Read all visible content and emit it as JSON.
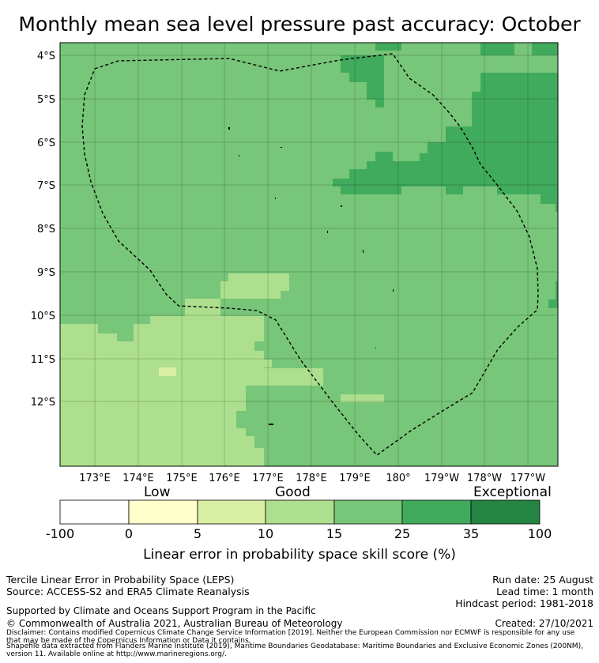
{
  "title": "Monthly mean sea level pressure past accuracy: October",
  "map": {
    "lon_labels": [
      "173°E",
      "174°E",
      "175°E",
      "176°E",
      "177°E",
      "178°E",
      "179°E",
      "180°",
      "179°W",
      "178°W",
      "177°W"
    ],
    "lat_labels": [
      "4°S",
      "5°S",
      "6°S",
      "7°S",
      "8°S",
      "9°S",
      "10°S",
      "11°S",
      "12°S"
    ],
    "colors": {
      "cat_10_15": "#addf8e",
      "cat_5_10": "#d9efa3",
      "cat_15_25": "#78c679",
      "cat_25_35": "#41ab5d",
      "boundary": "#000000"
    }
  },
  "colorbar": {
    "categories": [
      "Low",
      "Good",
      "Exceptional"
    ],
    "ticks": [
      "-100",
      "0",
      "5",
      "10",
      "15",
      "25",
      "35",
      "100"
    ],
    "colors": [
      "#ffffff",
      "#ffffcc",
      "#d9efa3",
      "#addf8e",
      "#78c679",
      "#41ab5d",
      "#238443"
    ],
    "label": "Linear error in probability space skill score (%)"
  },
  "footer": {
    "left1": "Tercile Linear Error in Probability Space (LEPS)",
    "left2": "Source: ACCESS-S2 and ERA5 Climate Reanalysis",
    "support": "Supported by Climate and Oceans Support Program in the Pacific",
    "copyright": "© Commonwealth of Australia 2021, Australian Bureau of Meteorology",
    "run_date": "Run date: 25 August",
    "lead_time": "Lead time: 1 month",
    "hindcast": "Hindcast period: 1981-2018",
    "created": "Created: 27/10/2021",
    "disclaimer1": "Disclaimer: Contains modified Copernicus Climate Change Service Information [2019]. Neither the European Commission nor ECMWF is responsible for any use",
    "disclaimer2": "that may be made of the Copernicus Information or Data it contains.",
    "shapefile1": "Shapefile data extracted from Flanders Marine Institute (2019), Maritime Boundaries Geodatabase: Maritime Boundaries and Exclusive Economic Zones (200NM),",
    "shapefile2": "version 11. Available online at http://www.marineregions.org/."
  }
}
